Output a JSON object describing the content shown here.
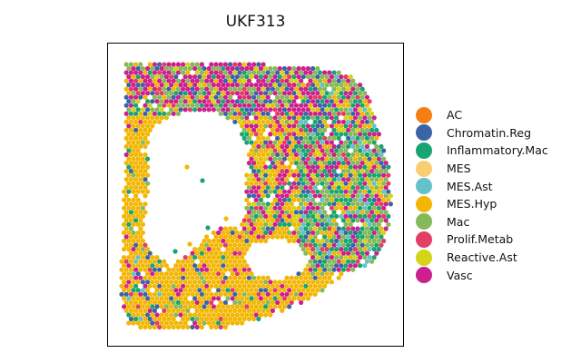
{
  "chart_data": {
    "type": "scatter",
    "title": "UKF313",
    "xlabel": "",
    "ylabel": "",
    "grid": false,
    "legend_placement": "right",
    "categories": [
      "AC",
      "Chromatin.Reg",
      "Inflammatory.Mac",
      "MES",
      "MES.Ast",
      "MES.Hyp",
      "Mac",
      "Prolif.Metab",
      "Reactive.Ast",
      "Vasc"
    ],
    "colors": [
      "#f57f10",
      "#3b64a8",
      "#17a572",
      "#f7cf72",
      "#65c2c8",
      "#f2b705",
      "#86b95a",
      "#e33e64",
      "#d4d418",
      "#cd1f8e"
    ]
  }
}
